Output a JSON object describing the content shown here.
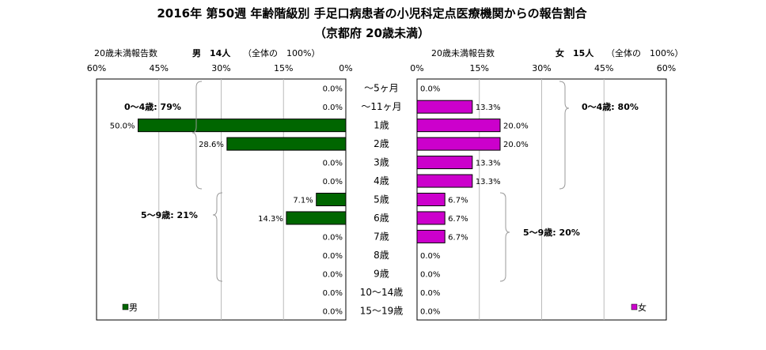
{
  "title_line1": "2016年 第50週 年齢階級別 手足口病患者の小児科定点医療機関からの報告割合",
  "title_line2": "（京都府 20歳未満）",
  "left": {
    "header_label": "20歳未満報告数",
    "header_count": "男　14人",
    "header_note": "（全体の　100%）",
    "legend": "男",
    "ann_04": "0～4歳: 79%",
    "ann_59": "5～9歳: 21%",
    "color": "#006600"
  },
  "right": {
    "header_label": "20歳未満報告数",
    "header_count": "女　15人",
    "header_note": "（全体の　100%）",
    "legend": "女",
    "ann_04": "0～4歳: 80%",
    "ann_59": "5～9歳: 20%",
    "color": "#CC00CC"
  },
  "chart_data": {
    "type": "bar",
    "orientation": "horizontal",
    "layout": "population-pyramid",
    "title": "2016年 第50週 年齢階級別 手足口病患者の小児科定点医療機関からの報告割合（京都府 20歳未満）",
    "categories": [
      "～5ヶ月",
      "～11ヶ月",
      "1歳",
      "2歳",
      "3歳",
      "4歳",
      "5歳",
      "6歳",
      "7歳",
      "8歳",
      "9歳",
      "10～14歳",
      "15～19歳"
    ],
    "xlim": [
      0,
      60
    ],
    "ticks": [
      0,
      15,
      30,
      45,
      60
    ],
    "tick_labels": [
      "0%",
      "15%",
      "30%",
      "45%",
      "60%"
    ],
    "series": [
      {
        "name": "男",
        "values": [
          0.0,
          0.0,
          50.0,
          28.6,
          0.0,
          0.0,
          7.1,
          14.3,
          0.0,
          0.0,
          0.0,
          0.0,
          0.0
        ],
        "labels": [
          "0.0%",
          "0.0%",
          "50.0%",
          "28.6%",
          "0.0%",
          "0.0%",
          "7.1%",
          "14.3%",
          "0.0%",
          "0.0%",
          "0.0%",
          "0.0%",
          "0.0%"
        ]
      },
      {
        "name": "女",
        "values": [
          0.0,
          13.3,
          20.0,
          20.0,
          13.3,
          13.3,
          6.7,
          6.7,
          6.7,
          0.0,
          0.0,
          0.0,
          0.0
        ],
        "labels": [
          "0.0%",
          "13.3%",
          "20.0%",
          "20.0%",
          "13.3%",
          "13.3%",
          "6.7%",
          "6.7%",
          "6.7%",
          "0.0%",
          "0.0%",
          "0.0%",
          "0.0%"
        ]
      }
    ],
    "grid": true,
    "legend": "bottom-left / bottom-right"
  }
}
